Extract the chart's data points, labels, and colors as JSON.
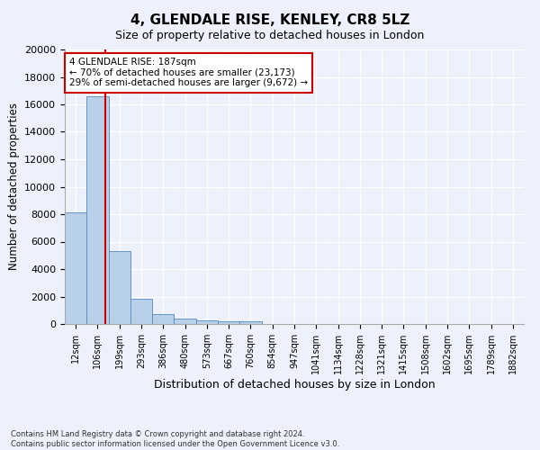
{
  "title1": "4, GLENDALE RISE, KENLEY, CR8 5LZ",
  "title2": "Size of property relative to detached houses in London",
  "xlabel": "Distribution of detached houses by size in London",
  "ylabel": "Number of detached properties",
  "bar_color": "#b8d0e8",
  "bar_edge_color": "#5588bb",
  "vline_color": "#cc0000",
  "property_size": 187,
  "categories": [
    "12sqm",
    "106sqm",
    "199sqm",
    "293sqm",
    "386sqm",
    "480sqm",
    "573sqm",
    "667sqm",
    "760sqm",
    "854sqm",
    "947sqm",
    "1041sqm",
    "1134sqm",
    "1228sqm",
    "1321sqm",
    "1415sqm",
    "1508sqm",
    "1602sqm",
    "1695sqm",
    "1789sqm",
    "1882sqm"
  ],
  "bar_heights": [
    8100,
    16600,
    5300,
    1850,
    700,
    380,
    280,
    200,
    170,
    0,
    0,
    0,
    0,
    0,
    0,
    0,
    0,
    0,
    0,
    0,
    0
  ],
  "ylim": [
    0,
    20000
  ],
  "yticks": [
    0,
    2000,
    4000,
    6000,
    8000,
    10000,
    12000,
    14000,
    16000,
    18000,
    20000
  ],
  "annotation_line1": "4 GLENDALE RISE: 187sqm",
  "annotation_line2": "← 70% of detached houses are smaller (23,173)",
  "annotation_line3": "29% of semi-detached houses are larger (9,672) →",
  "annotation_box_color": "#ffffff",
  "annotation_box_edge": "#cc0000",
  "footer1": "Contains HM Land Registry data © Crown copyright and database right 2024.",
  "footer2": "Contains public sector information licensed under the Open Government Licence v3.0.",
  "background_color": "#edf1fb",
  "grid_color": "#ffffff",
  "n_bars": 21
}
